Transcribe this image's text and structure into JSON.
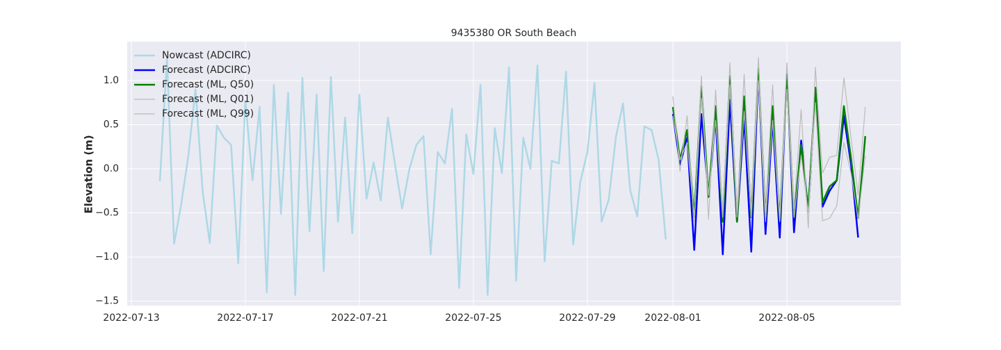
{
  "chart_data": {
    "type": "line",
    "title": "9435380 OR South Beach",
    "ylabel": "Elevation (m)",
    "x": [
      "2022-07-14 00:00",
      "2022-07-14 06:00",
      "2022-07-14 12:00",
      "2022-07-14 18:00",
      "2022-07-15 00:00",
      "2022-07-15 06:00",
      "2022-07-15 12:00",
      "2022-07-15 18:00",
      "2022-07-16 00:00",
      "2022-07-16 06:00",
      "2022-07-16 12:00",
      "2022-07-16 18:00",
      "2022-07-17 00:00",
      "2022-07-17 06:00",
      "2022-07-17 12:00",
      "2022-07-17 18:00",
      "2022-07-18 00:00",
      "2022-07-18 06:00",
      "2022-07-18 12:00",
      "2022-07-18 18:00",
      "2022-07-19 00:00",
      "2022-07-19 06:00",
      "2022-07-19 12:00",
      "2022-07-19 18:00",
      "2022-07-20 00:00",
      "2022-07-20 06:00",
      "2022-07-20 12:00",
      "2022-07-20 18:00",
      "2022-07-21 00:00",
      "2022-07-21 06:00",
      "2022-07-21 12:00",
      "2022-07-21 18:00",
      "2022-07-22 00:00",
      "2022-07-22 06:00",
      "2022-07-22 12:00",
      "2022-07-22 18:00",
      "2022-07-23 00:00",
      "2022-07-23 06:00",
      "2022-07-23 12:00",
      "2022-07-23 18:00",
      "2022-07-24 00:00",
      "2022-07-24 06:00",
      "2022-07-24 12:00",
      "2022-07-24 18:00",
      "2022-07-25 00:00",
      "2022-07-25 06:00",
      "2022-07-25 12:00",
      "2022-07-25 18:00",
      "2022-07-26 00:00",
      "2022-07-26 06:00",
      "2022-07-26 12:00",
      "2022-07-26 18:00",
      "2022-07-27 00:00",
      "2022-07-27 06:00",
      "2022-07-27 12:00",
      "2022-07-27 18:00",
      "2022-07-28 00:00",
      "2022-07-28 06:00",
      "2022-07-28 12:00",
      "2022-07-28 18:00",
      "2022-07-29 00:00",
      "2022-07-29 06:00",
      "2022-07-29 12:00",
      "2022-07-29 18:00",
      "2022-07-30 00:00",
      "2022-07-30 06:00",
      "2022-07-30 12:00",
      "2022-07-30 18:00",
      "2022-07-31 00:00",
      "2022-07-31 06:00",
      "2022-07-31 12:00",
      "2022-07-31 18:00",
      "2022-08-01 00:00",
      "2022-08-01 06:00",
      "2022-08-01 12:00",
      "2022-08-01 18:00",
      "2022-08-02 00:00",
      "2022-08-02 06:00",
      "2022-08-02 12:00",
      "2022-08-02 18:00",
      "2022-08-03 00:00",
      "2022-08-03 06:00",
      "2022-08-03 12:00",
      "2022-08-03 18:00",
      "2022-08-04 00:00",
      "2022-08-04 06:00",
      "2022-08-04 12:00",
      "2022-08-04 18:00",
      "2022-08-05 00:00",
      "2022-08-05 06:00",
      "2022-08-05 12:00",
      "2022-08-05 18:00",
      "2022-08-06 00:00",
      "2022-08-06 06:00",
      "2022-08-06 12:00",
      "2022-08-06 18:00",
      "2022-08-07 00:00",
      "2022-08-07 06:00",
      "2022-08-07 12:00",
      "2022-08-07 18:00"
    ],
    "series": [
      {
        "name": "Nowcast (ADCIRC)",
        "color": "#add8e6",
        "linewidth": 2.5,
        "values": [
          -0.14,
          1.25,
          -0.85,
          -0.4,
          0.15,
          0.9,
          -0.25,
          -0.84,
          0.49,
          0.35,
          0.27,
          -1.07,
          0.77,
          -0.13,
          0.7,
          -1.4,
          0.95,
          -0.51,
          0.86,
          -1.43,
          1.03,
          -0.71,
          0.84,
          -1.16,
          1.04,
          -0.6,
          0.58,
          -0.73,
          0.84,
          -0.34,
          0.07,
          -0.36,
          0.58,
          0.05,
          -0.45,
          -0.01,
          0.27,
          0.37,
          -0.97,
          0.19,
          0.06,
          0.68,
          -1.35,
          0.39,
          -0.06,
          0.95,
          -1.43,
          0.46,
          -0.05,
          1.15,
          -1.27,
          0.35,
          0.0,
          1.17,
          -1.05,
          0.09,
          0.06,
          1.1,
          -0.86,
          -0.15,
          0.19,
          0.97,
          -0.6,
          -0.35,
          0.36,
          0.74,
          -0.24,
          -0.54,
          0.48,
          0.44,
          0.1,
          -0.8,
          null,
          null,
          null,
          null,
          null,
          null,
          null,
          null,
          null,
          null,
          null,
          null,
          null,
          null,
          null,
          null,
          null,
          null,
          null,
          null,
          null,
          null,
          null,
          null,
          null,
          null,
          null,
          null
        ]
      },
      {
        "name": "Forecast (ADCIRC)",
        "color": "#0000ff",
        "linewidth": 2.5,
        "values": [
          null,
          null,
          null,
          null,
          null,
          null,
          null,
          null,
          null,
          null,
          null,
          null,
          null,
          null,
          null,
          null,
          null,
          null,
          null,
          null,
          null,
          null,
          null,
          null,
          null,
          null,
          null,
          null,
          null,
          null,
          null,
          null,
          null,
          null,
          null,
          null,
          null,
          null,
          null,
          null,
          null,
          null,
          null,
          null,
          null,
          null,
          null,
          null,
          null,
          null,
          null,
          null,
          null,
          null,
          null,
          null,
          null,
          null,
          null,
          null,
          null,
          null,
          null,
          null,
          null,
          null,
          null,
          null,
          null,
          null,
          null,
          null,
          0.62,
          0.05,
          0.35,
          -0.92,
          0.62,
          -0.3,
          0.58,
          -0.97,
          0.78,
          -0.6,
          0.58,
          -0.94,
          1.1,
          -0.74,
          0.55,
          -0.78,
          1.07,
          -0.72,
          0.32,
          -0.48,
          0.9,
          -0.43,
          -0.25,
          -0.13,
          0.6,
          0.05,
          -0.78,
          null
        ]
      },
      {
        "name": "Forecast (ML, Q50)",
        "color": "#008000",
        "linewidth": 2.5,
        "values": [
          null,
          null,
          null,
          null,
          null,
          null,
          null,
          null,
          null,
          null,
          null,
          null,
          null,
          null,
          null,
          null,
          null,
          null,
          null,
          null,
          null,
          null,
          null,
          null,
          null,
          null,
          null,
          null,
          null,
          null,
          null,
          null,
          null,
          null,
          null,
          null,
          null,
          null,
          null,
          null,
          null,
          null,
          null,
          null,
          null,
          null,
          null,
          null,
          null,
          null,
          null,
          null,
          null,
          null,
          null,
          null,
          null,
          null,
          null,
          null,
          null,
          null,
          null,
          null,
          null,
          null,
          null,
          null,
          null,
          null,
          null,
          null,
          0.7,
          0.1,
          0.44,
          -0.55,
          0.93,
          -0.32,
          0.71,
          -0.6,
          1.05,
          -0.6,
          0.82,
          -0.55,
          1.13,
          -0.55,
          0.71,
          -0.58,
          1.03,
          -0.55,
          0.27,
          -0.47,
          0.92,
          -0.38,
          -0.2,
          -0.13,
          0.71,
          0.12,
          -0.56,
          0.37
        ]
      },
      {
        "name": "Forecast (ML, Q01)",
        "color": "#bbbbbb",
        "linewidth": 1.2,
        "values": [
          null,
          null,
          null,
          null,
          null,
          null,
          null,
          null,
          null,
          null,
          null,
          null,
          null,
          null,
          null,
          null,
          null,
          null,
          null,
          null,
          null,
          null,
          null,
          null,
          null,
          null,
          null,
          null,
          null,
          null,
          null,
          null,
          null,
          null,
          null,
          null,
          null,
          null,
          null,
          null,
          null,
          null,
          null,
          null,
          null,
          null,
          null,
          null,
          null,
          null,
          null,
          null,
          null,
          null,
          null,
          null,
          null,
          null,
          null,
          null,
          null,
          null,
          null,
          null,
          null,
          null,
          null,
          null,
          null,
          null,
          null,
          null,
          0.6,
          0.1,
          0.3,
          -0.55,
          0.8,
          -0.3,
          0.55,
          -0.55,
          0.95,
          -0.55,
          0.65,
          -0.55,
          1.0,
          -0.6,
          0.55,
          -0.6,
          0.9,
          -0.55,
          0.15,
          -0.5,
          0.75,
          -0.59,
          -0.56,
          -0.42,
          0.3,
          -0.05,
          -0.57,
          0.15
        ]
      },
      {
        "name": "Forecast (ML, Q99)",
        "color": "#bbbbbb",
        "linewidth": 1.2,
        "values": [
          null,
          null,
          null,
          null,
          null,
          null,
          null,
          null,
          null,
          null,
          null,
          null,
          null,
          null,
          null,
          null,
          null,
          null,
          null,
          null,
          null,
          null,
          null,
          null,
          null,
          null,
          null,
          null,
          null,
          null,
          null,
          null,
          null,
          null,
          null,
          null,
          null,
          null,
          null,
          null,
          null,
          null,
          null,
          null,
          null,
          null,
          null,
          null,
          null,
          null,
          null,
          null,
          null,
          null,
          null,
          null,
          null,
          null,
          null,
          null,
          null,
          null,
          null,
          null,
          null,
          null,
          null,
          null,
          null,
          null,
          null,
          null,
          0.82,
          -0.03,
          0.6,
          -0.6,
          1.05,
          -0.57,
          0.89,
          -0.5,
          1.2,
          -0.5,
          1.07,
          -0.5,
          1.26,
          -0.5,
          0.95,
          -0.55,
          1.2,
          -0.45,
          0.67,
          -0.67,
          1.15,
          -0.05,
          0.13,
          0.15,
          1.03,
          0.35,
          -0.3,
          0.7
        ]
      }
    ],
    "xlim": [
      "2022-07-12 20:30",
      "2022-08-09 00:00"
    ],
    "xticks": [
      "2022-07-13",
      "2022-07-17",
      "2022-07-21",
      "2022-07-25",
      "2022-07-29",
      "2022-08-01",
      "2022-08-05"
    ],
    "ylim": [
      -1.55,
      1.44
    ],
    "yticks": [
      -1.5,
      -1.0,
      -0.5,
      0.0,
      0.5,
      1.0
    ],
    "ytick_labels": [
      "−1.5",
      "−1.0",
      "−0.5",
      "0.0",
      "0.5",
      "1.0"
    ],
    "grid": true,
    "legend": "upper left"
  }
}
